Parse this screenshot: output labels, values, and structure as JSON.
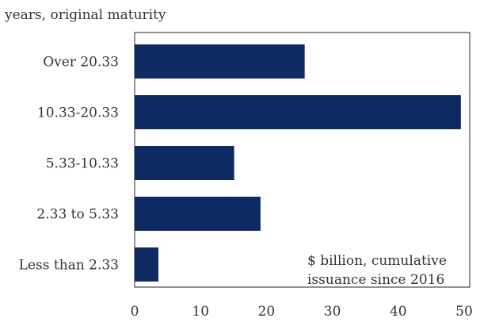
{
  "chart_data": {
    "type": "bar",
    "orientation": "horizontal",
    "title": "",
    "ylabel": "years, original maturity",
    "annotation_lines": [
      "$ billion, cumulative",
      "issuance since 2016"
    ],
    "categories": [
      "Over 20.33",
      "10.33-20.33",
      "5.33-10.33",
      "2.33 to 5.33",
      "Less than 2.33"
    ],
    "values": [
      25.8,
      49.5,
      15.1,
      19.1,
      3.6
    ],
    "xlim": [
      0,
      50
    ],
    "xticks": [
      "0",
      "10",
      "20",
      "30",
      "40",
      "50"
    ],
    "grid": false,
    "bar_color": "#0e2a63"
  }
}
